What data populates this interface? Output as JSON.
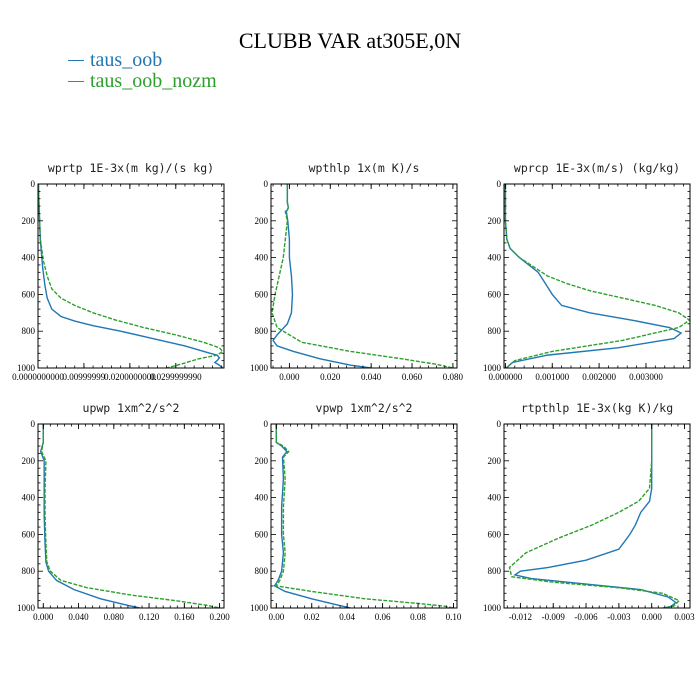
{
  "figure": {
    "title": "CLUBB VAR at305E,0N"
  },
  "legend": [
    {
      "name": "taus_oob",
      "color": "#1f77b4"
    },
    {
      "name": "taus_oob_nozm",
      "color": "#2ca02c"
    }
  ],
  "chart_data": [
    {
      "type": "line",
      "title": "wprtp  1E-3x(m kg)/(s kg)",
      "xlim": [
        0,
        0.0405
      ],
      "ylim": [
        1000,
        0
      ],
      "xticks": [
        0,
        0.00999999,
        0.02,
        0.0299999
      ],
      "xtick_labels": [
        "0.0000000000",
        "0.00999999",
        "0.0200000000",
        "0.0299999990"
      ],
      "yticks": [
        0,
        200,
        400,
        600,
        800,
        1000
      ],
      "series": [
        {
          "name": "taus_oob",
          "color": "#1f77b4",
          "dash": false,
          "x": [
            0.0001,
            0.0002,
            0.0005,
            0.001,
            0.0015,
            0.002,
            0.003,
            0.005,
            0.008,
            0.012,
            0.018,
            0.025,
            0.032,
            0.0375,
            0.039,
            0.0395,
            0.039,
            0.0385,
            0.0395,
            0.0402
          ],
          "y": [
            0,
            100,
            300,
            450,
            550,
            620,
            680,
            720,
            745,
            770,
            800,
            840,
            880,
            920,
            930,
            945,
            960,
            970,
            985,
            1000
          ]
        },
        {
          "name": "taus_oob_nozm",
          "color": "#2ca02c",
          "dash": true,
          "x": [
            0.0001,
            0.0002,
            0.0005,
            0.0012,
            0.002,
            0.003,
            0.005,
            0.008,
            0.012,
            0.017,
            0.023,
            0.03,
            0.036,
            0.0395,
            0.0402,
            0.039,
            0.035,
            0.031,
            0.028
          ],
          "y": [
            0,
            100,
            300,
            420,
            500,
            570,
            620,
            660,
            700,
            740,
            780,
            820,
            860,
            890,
            910,
            930,
            950,
            980,
            1000
          ]
        }
      ]
    },
    {
      "type": "line",
      "title": "wpthlp  1x(m K)/s",
      "xlim": [
        -0.009,
        0.082
      ],
      "ylim": [
        1000,
        0
      ],
      "xticks": [
        0,
        0.02,
        0.04,
        0.06,
        0.08
      ],
      "xtick_labels": [
        "0.000",
        "0.020",
        "0.040",
        "0.060",
        "0.080"
      ],
      "yticks": [
        0,
        200,
        400,
        600,
        800,
        1000
      ],
      "series": [
        {
          "name": "taus_oob",
          "color": "#1f77b4",
          "dash": false,
          "x": [
            -0.001,
            -0.001,
            -0.0005,
            -0.0015,
            -0.0008,
            0,
            0,
            0.001,
            0.0015,
            0.001,
            -0.001,
            -0.006,
            -0.008,
            -0.006,
            0.002,
            0.015,
            0.03,
            0.04
          ],
          "y": [
            0,
            100,
            130,
            150,
            200,
            300,
            400,
            500,
            600,
            700,
            760,
            820,
            850,
            880,
            910,
            950,
            985,
            1000
          ]
        },
        {
          "name": "taus_oob_nozm",
          "color": "#2ca02c",
          "dash": true,
          "x": [
            -0.001,
            -0.001,
            -0.0005,
            -0.002,
            -0.001,
            -0.002,
            -0.003,
            -0.005,
            -0.007,
            -0.0085,
            -0.006,
            0.006,
            0.03,
            0.055,
            0.072,
            0.08
          ],
          "y": [
            0,
            100,
            130,
            150,
            200,
            300,
            400,
            500,
            600,
            700,
            780,
            860,
            910,
            950,
            980,
            1000
          ]
        }
      ]
    },
    {
      "type": "line",
      "title": "wprcp  1E-3x(m/s) (kg/kg)",
      "xlim": [
        -3e-05,
        0.00394
      ],
      "ylim": [
        1000,
        0
      ],
      "xticks": [
        0,
        0.001,
        0.002,
        0.003
      ],
      "xtick_labels": [
        "0.000000",
        "0.001000",
        "0.002000",
        "0.003000"
      ],
      "yticks": [
        0,
        200,
        400,
        600,
        800,
        1000
      ],
      "series": [
        {
          "name": "taus_oob",
          "color": "#1f77b4",
          "dash": false,
          "x": [
            0,
            0,
            3e-05,
            0.0001,
            0.0003,
            0.0005,
            0.0007,
            0.0008,
            0.0009,
            0.001,
            0.0012,
            0.0018,
            0.0027,
            0.0035,
            0.00375,
            0.0036,
            0.0024,
            0.0009,
            0.00015,
            2e-05
          ],
          "y": [
            0,
            200,
            300,
            350,
            400,
            440,
            480,
            520,
            560,
            600,
            660,
            700,
            740,
            780,
            810,
            840,
            890,
            930,
            970,
            1000
          ]
        },
        {
          "name": "taus_oob_nozm",
          "color": "#2ca02c",
          "dash": true,
          "x": [
            0,
            0,
            3e-05,
            0.0001,
            0.0003,
            0.0006,
            0.0009,
            0.0013,
            0.0018,
            0.0025,
            0.0032,
            0.0037,
            0.00393,
            0.0037,
            0.0025,
            0.001,
            0.0002,
            2e-05
          ],
          "y": [
            0,
            200,
            300,
            350,
            400,
            450,
            500,
            540,
            580,
            620,
            660,
            700,
            740,
            780,
            850,
            910,
            960,
            1000
          ]
        }
      ]
    },
    {
      "type": "line",
      "title": "upwp  1xm^2/s^2",
      "xlim": [
        -0.006,
        0.205
      ],
      "ylim": [
        1000,
        0
      ],
      "xticks": [
        0,
        0.04,
        0.08,
        0.12,
        0.16,
        0.2
      ],
      "xtick_labels": [
        "0.000",
        "0.040",
        "0.080",
        "0.120",
        "0.160",
        "0.200"
      ],
      "yticks": [
        0,
        200,
        400,
        600,
        800,
        1000
      ],
      "series": [
        {
          "name": "taus_oob",
          "color": "#1f77b4",
          "dash": false,
          "x": [
            0,
            0,
            -0.003,
            0.001,
            0.001,
            0.001,
            0.002,
            0.003,
            0.006,
            0.015,
            0.035,
            0.065,
            0.095,
            0.11
          ],
          "y": [
            0,
            100,
            150,
            200,
            350,
            500,
            650,
            750,
            800,
            850,
            900,
            950,
            985,
            1000
          ]
        },
        {
          "name": "taus_oob_nozm",
          "color": "#2ca02c",
          "dash": true,
          "x": [
            0,
            0,
            -0.002,
            0.003,
            0.002,
            0.002,
            0.003,
            0.004,
            0.008,
            0.02,
            0.05,
            0.1,
            0.15,
            0.185,
            0.2
          ],
          "y": [
            0,
            100,
            150,
            200,
            350,
            500,
            650,
            750,
            800,
            850,
            890,
            930,
            960,
            985,
            1000
          ]
        }
      ]
    },
    {
      "type": "line",
      "title": "vpwp  1xm^2/s^2",
      "xlim": [
        -0.003,
        0.102
      ],
      "ylim": [
        1000,
        0
      ],
      "xticks": [
        0,
        0.02,
        0.04,
        0.06,
        0.08,
        0.1
      ],
      "xtick_labels": [
        "0.00",
        "0.02",
        "0.04",
        "0.06",
        "0.08",
        "0.10"
      ],
      "yticks": [
        0,
        200,
        400,
        600,
        800,
        1000
      ],
      "series": [
        {
          "name": "taus_oob",
          "color": "#1f77b4",
          "dash": false,
          "x": [
            0,
            0,
            0.003,
            0.006,
            0.0035,
            0.004,
            0.003,
            0.003,
            0.004,
            0.003,
            0.001,
            -0.001,
            0.005,
            0.02,
            0.035,
            0.042
          ],
          "y": [
            0,
            100,
            120,
            150,
            180,
            300,
            450,
            600,
            700,
            800,
            850,
            880,
            910,
            950,
            985,
            1000
          ]
        },
        {
          "name": "taus_oob_nozm",
          "color": "#2ca02c",
          "dash": true,
          "x": [
            0,
            0,
            0.004,
            0.007,
            0.004,
            0.005,
            0.004,
            0.004,
            0.005,
            0.004,
            0.002,
            0.0,
            0.02,
            0.05,
            0.08,
            0.095,
            0.1
          ],
          "y": [
            0,
            100,
            120,
            150,
            180,
            300,
            450,
            600,
            700,
            800,
            850,
            880,
            910,
            950,
            975,
            990,
            1000
          ]
        }
      ]
    },
    {
      "type": "line",
      "title": "rtpthlp  1E-3x(kg K)/kg",
      "xlim": [
        -0.0135,
        0.0035
      ],
      "ylim": [
        1000,
        0
      ],
      "xticks": [
        -0.012,
        -0.009,
        -0.006,
        -0.003,
        0,
        0.003
      ],
      "xtick_labels": [
        "-0.012",
        "-0.009",
        "-0.006",
        "-0.003",
        "0.000",
        "0.003"
      ],
      "yticks": [
        0,
        200,
        400,
        600,
        800,
        1000
      ],
      "series": [
        {
          "name": "taus_oob",
          "color": "#1f77b4",
          "dash": false,
          "x": [
            0,
            0,
            0,
            -0.0002,
            -0.001,
            -0.0015,
            -0.002,
            -0.003,
            -0.006,
            -0.0095,
            -0.012,
            -0.0125,
            -0.011,
            -0.006,
            -0.001,
            0.0015,
            0.0022,
            0.0018,
            0.0012
          ],
          "y": [
            0,
            200,
            350,
            420,
            480,
            550,
            600,
            680,
            740,
            780,
            800,
            820,
            840,
            870,
            900,
            940,
            970,
            990,
            1000
          ]
        },
        {
          "name": "taus_oob_nozm",
          "color": "#2ca02c",
          "dash": true,
          "x": [
            0,
            0,
            -0.0002,
            -0.0012,
            -0.003,
            -0.0055,
            -0.0085,
            -0.0115,
            -0.013,
            -0.0128,
            -0.009,
            -0.003,
            0.001,
            0.0025,
            0.002,
            0.001
          ],
          "y": [
            0,
            200,
            350,
            420,
            480,
            550,
            620,
            700,
            780,
            830,
            860,
            890,
            920,
            960,
            990,
            1000
          ]
        }
      ]
    }
  ]
}
